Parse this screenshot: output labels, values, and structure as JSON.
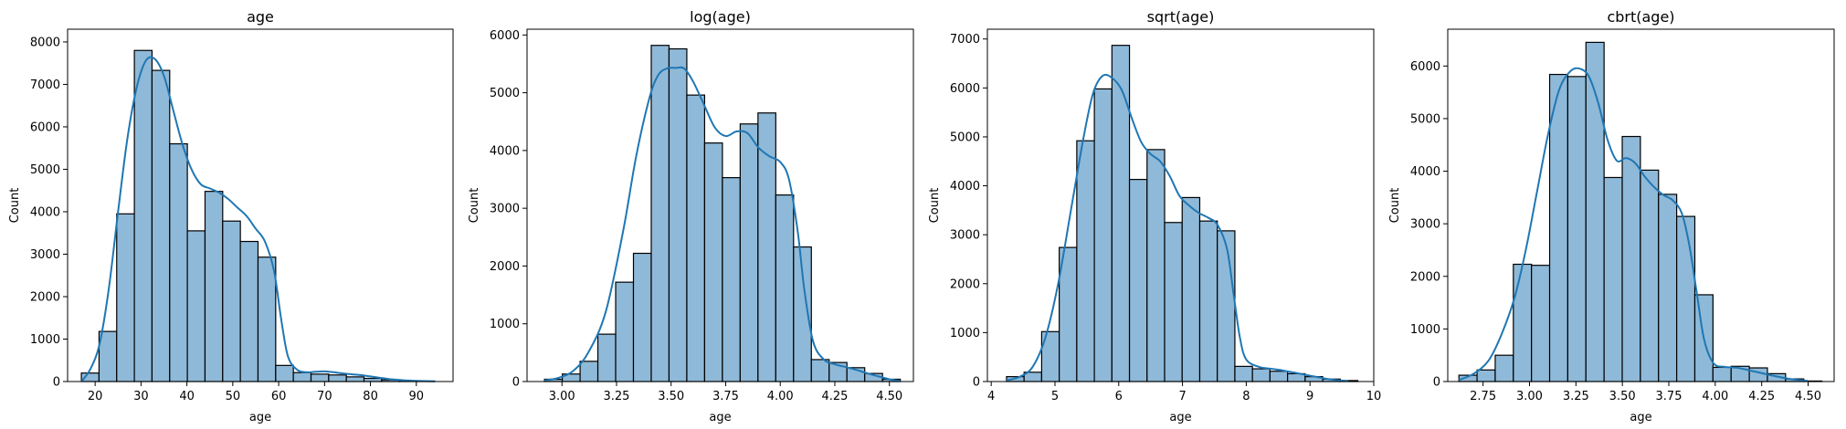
{
  "colors": {
    "bar_fill": "#8fb9d8",
    "bar_edge": "#000000",
    "kde_line": "#1f77b4",
    "axes": "#000000",
    "background": "#ffffff"
  },
  "chart_data": [
    {
      "type": "bar",
      "title": "age",
      "xlabel": "age",
      "ylabel": "Count",
      "xlim": [
        14,
        98
      ],
      "ylim": [
        0,
        8300
      ],
      "xticks": [
        20,
        30,
        40,
        50,
        60,
        70,
        80,
        90
      ],
      "xtick_labels": [
        "20",
        "30",
        "40",
        "50",
        "60",
        "70",
        "80",
        "90"
      ],
      "yticks": [
        0,
        1000,
        2000,
        3000,
        4000,
        5000,
        6000,
        7000,
        8000
      ],
      "ytick_labels": [
        "0",
        "1000",
        "2000",
        "3000",
        "4000",
        "5000",
        "6000",
        "7000",
        "8000"
      ],
      "bin_start": 17,
      "bin_width": 3.85,
      "values": [
        200,
        1180,
        3950,
        7800,
        7330,
        5600,
        3550,
        4480,
        3780,
        3300,
        2930,
        380,
        210,
        175,
        155,
        110,
        75,
        40,
        20,
        10
      ],
      "kde": {
        "x": [
          17,
          19,
          21,
          23,
          25,
          27,
          29,
          31,
          33,
          35,
          37,
          39,
          41,
          43,
          45,
          47,
          49,
          51,
          53,
          55,
          57,
          59,
          60.5,
          62,
          64,
          66,
          68,
          70,
          72,
          74,
          76,
          78,
          80,
          82,
          84,
          86,
          88,
          90,
          94
        ],
        "y": [
          0,
          300,
          900,
          2200,
          4000,
          5700,
          6900,
          7550,
          7600,
          7200,
          6400,
          5600,
          5000,
          4650,
          4550,
          4450,
          4300,
          4100,
          3900,
          3600,
          3300,
          2600,
          1500,
          600,
          280,
          220,
          230,
          240,
          220,
          190,
          170,
          150,
          120,
          90,
          60,
          40,
          25,
          15,
          5
        ]
      }
    },
    {
      "type": "bar",
      "title": "log(age)",
      "xlabel": "age",
      "ylabel": "Count",
      "xlim": [
        2.84,
        4.61
      ],
      "ylim": [
        0,
        6100
      ],
      "xticks": [
        3.0,
        3.25,
        3.5,
        3.75,
        4.0,
        4.25,
        4.5
      ],
      "xtick_labels": [
        "3.00",
        "3.25",
        "3.50",
        "3.75",
        "4.00",
        "4.25",
        "4.50"
      ],
      "yticks": [
        0,
        1000,
        2000,
        3000,
        4000,
        5000,
        6000
      ],
      "ytick_labels": [
        "0",
        "1000",
        "2000",
        "3000",
        "4000",
        "5000",
        "6000"
      ],
      "bin_start": 2.92,
      "bin_width": 0.0815,
      "values": [
        40,
        130,
        350,
        820,
        1720,
        2220,
        5820,
        5760,
        4960,
        4130,
        3530,
        4460,
        4650,
        3230,
        2330,
        380,
        330,
        240,
        140,
        40
      ],
      "kde": {
        "x": [
          2.92,
          2.98,
          3.05,
          3.12,
          3.2,
          3.28,
          3.34,
          3.4,
          3.44,
          3.48,
          3.52,
          3.56,
          3.6,
          3.65,
          3.7,
          3.75,
          3.8,
          3.85,
          3.9,
          3.95,
          4.0,
          4.04,
          4.08,
          4.11,
          4.15,
          4.2,
          4.25,
          4.3,
          4.35,
          4.4,
          4.45,
          4.5,
          4.55
        ],
        "y": [
          20,
          60,
          180,
          500,
          1200,
          2600,
          3900,
          4900,
          5300,
          5420,
          5430,
          5420,
          5200,
          4800,
          4400,
          4250,
          4330,
          4300,
          4050,
          3900,
          3800,
          3500,
          2600,
          1600,
          700,
          380,
          300,
          250,
          200,
          140,
          90,
          40,
          10
        ]
      }
    },
    {
      "type": "bar",
      "title": "sqrt(age)",
      "xlabel": "age",
      "ylabel": "Count",
      "xlim": [
        3.94,
        10.0
      ],
      "ylim": [
        0,
        7200
      ],
      "xticks": [
        4,
        5,
        6,
        7,
        8,
        9,
        10
      ],
      "xtick_labels": [
        "4",
        "5",
        "6",
        "7",
        "8",
        "9",
        "10"
      ],
      "yticks": [
        0,
        1000,
        2000,
        3000,
        4000,
        5000,
        6000,
        7000
      ],
      "ytick_labels": [
        "0",
        "1000",
        "2000",
        "3000",
        "4000",
        "5000",
        "6000",
        "7000"
      ],
      "bin_start": 4.24,
      "bin_width": 0.2755,
      "values": [
        100,
        190,
        1020,
        2740,
        4920,
        5980,
        6870,
        4130,
        4740,
        3250,
        3760,
        3280,
        3080,
        310,
        260,
        210,
        160,
        100,
        50,
        20
      ],
      "kde": {
        "x": [
          4.24,
          4.45,
          4.65,
          4.85,
          5.05,
          5.25,
          5.45,
          5.6,
          5.75,
          5.9,
          6.05,
          6.2,
          6.35,
          6.5,
          6.65,
          6.8,
          6.95,
          7.1,
          7.25,
          7.4,
          7.55,
          7.7,
          7.8,
          7.9,
          8.0,
          8.2,
          8.4,
          8.6,
          8.8,
          9.0,
          9.2,
          9.4,
          9.6
        ],
        "y": [
          20,
          100,
          300,
          900,
          2000,
          3500,
          5000,
          5900,
          6250,
          6200,
          5950,
          5400,
          4900,
          4650,
          4500,
          4200,
          3800,
          3600,
          3450,
          3350,
          3200,
          2700,
          1800,
          900,
          450,
          300,
          260,
          220,
          170,
          120,
          70,
          30,
          10
        ]
      }
    },
    {
      "type": "bar",
      "title": "cbrt(age)",
      "xlabel": "age",
      "ylabel": "Count",
      "xlim": [
        2.56,
        4.64
      ],
      "ylim": [
        0,
        6700
      ],
      "xticks": [
        2.75,
        3.0,
        3.25,
        3.5,
        3.75,
        4.0,
        4.25,
        4.5
      ],
      "xtick_labels": [
        "2.75",
        "3.00",
        "3.25",
        "3.50",
        "3.75",
        "4.00",
        "4.25",
        "4.50"
      ],
      "yticks": [
        0,
        1000,
        2000,
        3000,
        4000,
        5000,
        6000
      ],
      "ytick_labels": [
        "0",
        "1000",
        "2000",
        "3000",
        "4000",
        "5000",
        "6000"
      ],
      "bin_start": 2.62,
      "bin_width": 0.0977,
      "values": [
        120,
        220,
        500,
        2230,
        2210,
        5840,
        5800,
        6450,
        3880,
        4660,
        4020,
        3560,
        3140,
        1650,
        270,
        290,
        260,
        150,
        50,
        10
      ],
      "kde": {
        "x": [
          2.62,
          2.7,
          2.78,
          2.85,
          2.92,
          2.98,
          3.04,
          3.1,
          3.16,
          3.22,
          3.27,
          3.32,
          3.37,
          3.42,
          3.47,
          3.52,
          3.57,
          3.62,
          3.67,
          3.72,
          3.77,
          3.82,
          3.86,
          3.9,
          3.94,
          3.99,
          4.05,
          4.12,
          4.2,
          4.3,
          4.4,
          4.5
        ],
        "y": [
          30,
          150,
          400,
          900,
          1600,
          2500,
          3600,
          4700,
          5550,
          5900,
          5950,
          5800,
          5300,
          4600,
          4200,
          4250,
          4150,
          3900,
          3700,
          3550,
          3450,
          3200,
          2600,
          1700,
          800,
          350,
          280,
          260,
          200,
          120,
          50,
          10
        ]
      }
    }
  ]
}
